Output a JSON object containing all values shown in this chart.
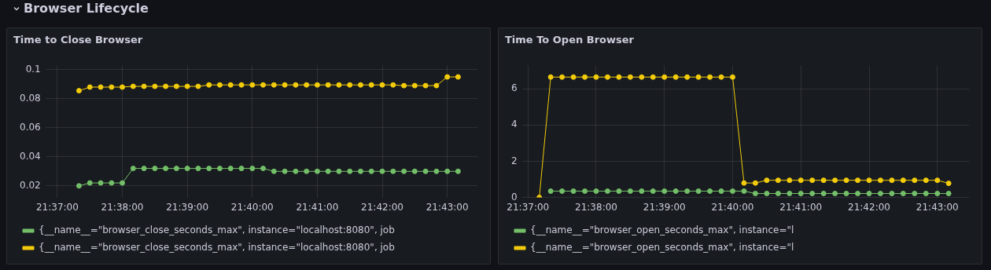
{
  "chart_data": [
    {
      "type": "other",
      "title": "Browser Lifecycle"
    },
    {
      "type": "line",
      "title": "Time to Close Browser",
      "marker": "circle",
      "line_style": "solid",
      "grid": true,
      "legend": "bottom",
      "x": [
        21.62222,
        21.625,
        21.62778,
        21.63056,
        21.63333,
        21.63611,
        21.63889,
        21.64167,
        21.64444,
        21.64722,
        21.65,
        21.65278,
        21.65556,
        21.65833,
        21.66111,
        21.66389,
        21.66667,
        21.66944,
        21.67222,
        21.675,
        21.67778,
        21.68056,
        21.68333,
        21.68611,
        21.68889,
        21.69167,
        21.69444,
        21.69722,
        21.7,
        21.70278,
        21.70556,
        21.70833,
        21.71111,
        21.71389,
        21.71667,
        21.71944
      ],
      "xlim": [
        21.6136,
        21.7244
      ],
      "xticks": [
        {
          "value": 21.61667,
          "label": "21:37:00"
        },
        {
          "value": 21.63333,
          "label": "21:38:00"
        },
        {
          "value": 21.65,
          "label": "21:39:00"
        },
        {
          "value": 21.66667,
          "label": "21:40:00"
        },
        {
          "value": 21.68333,
          "label": "21:41:00"
        },
        {
          "value": 21.7,
          "label": "21:42:00"
        },
        {
          "value": 21.71667,
          "label": "21:43:00"
        }
      ],
      "ylim": [
        0.012,
        0.103
      ],
      "yticks": [
        0.02,
        0.04,
        0.06,
        0.08,
        0.1
      ],
      "series": [
        {
          "name": "{__name__=\"browser_close_seconds_max\", instance=\"localhost:8080\", job",
          "color": "#73bf69",
          "values": [
            0.02,
            0.022,
            0.022,
            0.022,
            0.022,
            0.032,
            0.032,
            0.032,
            0.032,
            0.032,
            0.032,
            0.032,
            0.032,
            0.032,
            0.032,
            0.032,
            0.032,
            0.032,
            0.03,
            0.03,
            0.03,
            0.03,
            0.03,
            0.03,
            0.03,
            0.03,
            0.03,
            0.03,
            0.03,
            0.03,
            0.03,
            0.03,
            0.03,
            0.03,
            0.03,
            0.03
          ]
        },
        {
          "name": "{__name__=\"browser_close_seconds_max\", instance=\"localhost:8080\", job",
          "color": "#f2cc0c",
          "values": [
            0.0855,
            0.088,
            0.088,
            0.088,
            0.088,
            0.0885,
            0.0885,
            0.0885,
            0.0885,
            0.0885,
            0.0885,
            0.0885,
            0.0895,
            0.0895,
            0.0895,
            0.0895,
            0.0895,
            0.0895,
            0.0895,
            0.0895,
            0.0895,
            0.0895,
            0.0895,
            0.0895,
            0.0895,
            0.0895,
            0.0895,
            0.0895,
            0.0895,
            0.0895,
            0.089,
            0.089,
            0.089,
            0.089,
            0.095,
            0.095
          ]
        }
      ]
    },
    {
      "type": "line",
      "title": "Time To Open Browser",
      "marker": "circle",
      "line_style": "solid",
      "grid": true,
      "legend": "bottom",
      "x": [
        21.62222,
        21.625,
        21.62778,
        21.63056,
        21.63333,
        21.63611,
        21.63889,
        21.64167,
        21.64444,
        21.64722,
        21.65,
        21.65278,
        21.65556,
        21.65833,
        21.66111,
        21.66389,
        21.66667,
        21.66944,
        21.67222,
        21.675,
        21.67778,
        21.68056,
        21.68333,
        21.68611,
        21.68889,
        21.69167,
        21.69444,
        21.69722,
        21.7,
        21.70278,
        21.70556,
        21.70833,
        21.71111,
        21.71389,
        21.71667,
        21.71944
      ],
      "xlim": [
        21.6152,
        21.7244
      ],
      "xticks": [
        {
          "value": 21.61667,
          "label": "21:37:00"
        },
        {
          "value": 21.63333,
          "label": "21:38:00"
        },
        {
          "value": 21.65,
          "label": "21:39:00"
        },
        {
          "value": 21.66667,
          "label": "21:40:00"
        },
        {
          "value": 21.68333,
          "label": "21:41:00"
        },
        {
          "value": 21.7,
          "label": "21:42:00"
        },
        {
          "value": 21.71667,
          "label": "21:43:00"
        }
      ],
      "ylim": [
        0,
        7.3
      ],
      "yticks": [
        0,
        2,
        4,
        6
      ],
      "series": [
        {
          "name": "{__name__=\"browser_open_seconds_max\", instance=\"l",
          "color": "#73bf69",
          "values": [
            0.35,
            0.35,
            0.35,
            0.35,
            0.35,
            0.35,
            0.35,
            0.35,
            0.35,
            0.35,
            0.35,
            0.35,
            0.35,
            0.35,
            0.35,
            0.35,
            0.35,
            0.35,
            0.22,
            0.22,
            0.22,
            0.22,
            0.22,
            0.22,
            0.22,
            0.22,
            0.22,
            0.22,
            0.22,
            0.22,
            0.22,
            0.22,
            0.22,
            0.22,
            0.22,
            0.22
          ]
        },
        {
          "name": "{__name__=\"browser_open_seconds_max\", instance=\"l",
          "color": "#f2cc0c",
          "x": [
            21.61944,
            21.62222,
            21.625,
            21.62778,
            21.63056,
            21.63333,
            21.63611,
            21.63889,
            21.64167,
            21.64444,
            21.64722,
            21.65,
            21.65278,
            21.65556,
            21.65833,
            21.66111,
            21.66389,
            21.66667,
            21.66944,
            21.67222,
            21.675,
            21.67778,
            21.68056,
            21.68333,
            21.68611,
            21.68889,
            21.69167,
            21.69444,
            21.69722,
            21.7,
            21.70278,
            21.70556,
            21.70833,
            21.71111,
            21.71389,
            21.71667,
            21.71944
          ],
          "values": [
            0,
            6.65,
            6.65,
            6.65,
            6.65,
            6.65,
            6.65,
            6.65,
            6.65,
            6.65,
            6.65,
            6.65,
            6.65,
            6.65,
            6.65,
            6.65,
            6.65,
            6.65,
            0.8,
            0.8,
            0.95,
            0.95,
            0.95,
            0.95,
            0.95,
            0.95,
            0.95,
            0.95,
            0.95,
            0.95,
            0.95,
            0.95,
            0.95,
            0.95,
            0.95,
            0.95,
            0.78
          ]
        }
      ]
    }
  ]
}
